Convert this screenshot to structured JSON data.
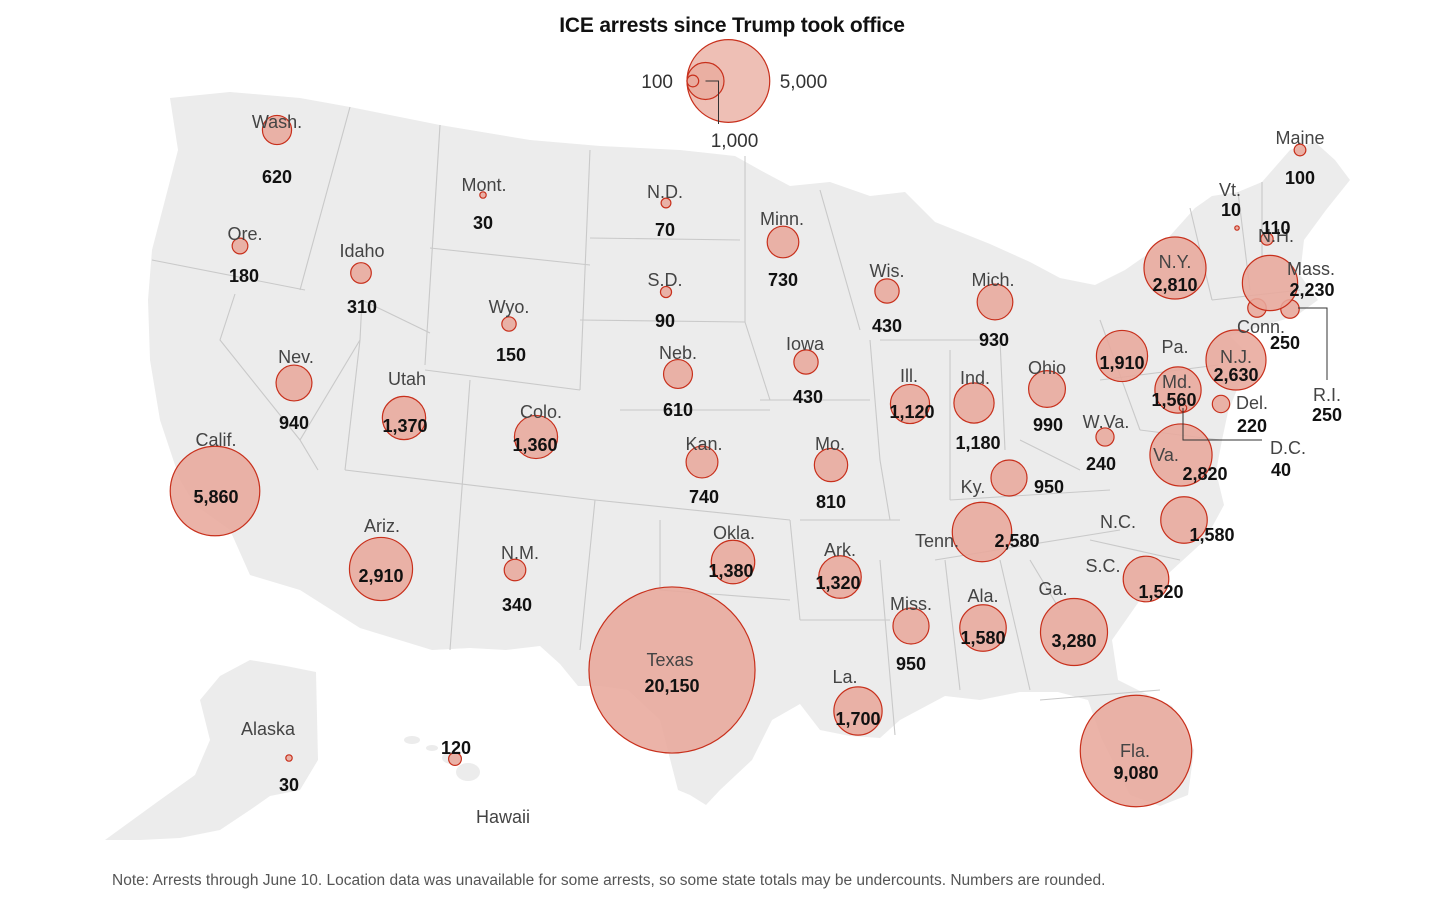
{
  "title": "ICE arrests since Trump took office",
  "note": "Note: Arrests through June 10. Location data was unavailable for some arrests, so some state totals may be undercounts. Numbers are rounded.",
  "colors": {
    "land": "#ececec",
    "border": "#c9c9c9",
    "bubble_fill": "#e8a99c",
    "bubble_stroke": "#c8301c",
    "text": "#111111",
    "label": "#444444"
  },
  "legend": {
    "values": [
      100,
      1000,
      5000
    ],
    "labels": [
      "100",
      "1,000",
      "5,000"
    ]
  },
  "states": [
    {
      "name": "Wash.",
      "value": 620,
      "display": "620"
    },
    {
      "name": "Ore.",
      "value": 180,
      "display": "180"
    },
    {
      "name": "Calif.",
      "value": 5860,
      "display": "5,860"
    },
    {
      "name": "Nev.",
      "value": 940,
      "display": "940"
    },
    {
      "name": "Idaho",
      "value": 310,
      "display": "310"
    },
    {
      "name": "Mont.",
      "value": 30,
      "display": "30"
    },
    {
      "name": "Wyo.",
      "value": 150,
      "display": "150"
    },
    {
      "name": "Utah",
      "value": 1370,
      "display": "1,370"
    },
    {
      "name": "Colo.",
      "value": 1360,
      "display": "1,360"
    },
    {
      "name": "Ariz.",
      "value": 2910,
      "display": "2,910"
    },
    {
      "name": "N.M.",
      "value": 340,
      "display": "340"
    },
    {
      "name": "N.D.",
      "value": 70,
      "display": "70"
    },
    {
      "name": "S.D.",
      "value": 90,
      "display": "90"
    },
    {
      "name": "Neb.",
      "value": 610,
      "display": "610"
    },
    {
      "name": "Kan.",
      "value": 740,
      "display": "740"
    },
    {
      "name": "Okla.",
      "value": 1380,
      "display": "1,380"
    },
    {
      "name": "Texas",
      "value": 20150,
      "display": "20,150"
    },
    {
      "name": "Minn.",
      "value": 730,
      "display": "730"
    },
    {
      "name": "Iowa",
      "value": 430,
      "display": "430"
    },
    {
      "name": "Mo.",
      "value": 810,
      "display": "810"
    },
    {
      "name": "Ark.",
      "value": 1320,
      "display": "1,320"
    },
    {
      "name": "La.",
      "value": 1700,
      "display": "1,700"
    },
    {
      "name": "Wis.",
      "value": 430,
      "display": "430"
    },
    {
      "name": "Ill.",
      "value": 1120,
      "display": "1,120"
    },
    {
      "name": "Mich.",
      "value": 930,
      "display": "930"
    },
    {
      "name": "Ind.",
      "value": 1180,
      "display": "1,180"
    },
    {
      "name": "Ohio",
      "value": 990,
      "display": "990"
    },
    {
      "name": "Ky.",
      "value": 950,
      "display": "950"
    },
    {
      "name": "Tenn.",
      "value": 2580,
      "display": "2,580"
    },
    {
      "name": "Miss.",
      "value": 950,
      "display": "950"
    },
    {
      "name": "Ala.",
      "value": 1580,
      "display": "1,580"
    },
    {
      "name": "Ga.",
      "value": 3280,
      "display": "3,280"
    },
    {
      "name": "Fla.",
      "value": 9080,
      "display": "9,080"
    },
    {
      "name": "S.C.",
      "value": 1520,
      "display": "1,520"
    },
    {
      "name": "N.C.",
      "value": 1580,
      "display": "1,580"
    },
    {
      "name": "Va.",
      "value": 2820,
      "display": "2,820"
    },
    {
      "name": "W.Va.",
      "value": 240,
      "display": "240"
    },
    {
      "name": "Md.",
      "value": 1560,
      "display": "1,560"
    },
    {
      "name": "D.C.",
      "value": 40,
      "display": "40"
    },
    {
      "name": "Del.",
      "value": 220,
      "display": "220"
    },
    {
      "name": "Pa.",
      "value": 1910,
      "display": "1,910"
    },
    {
      "name": "N.J.",
      "value": 2630,
      "display": "2,630"
    },
    {
      "name": "N.Y.",
      "value": 2810,
      "display": "2,810"
    },
    {
      "name": "Conn.",
      "value": 250,
      "display": "250"
    },
    {
      "name": "R.I.",
      "value": 250,
      "display": "250"
    },
    {
      "name": "Mass.",
      "value": 2230,
      "display": "2,230"
    },
    {
      "name": "Vt.",
      "value": 10,
      "display": "10"
    },
    {
      "name": "N.H.",
      "value": 110,
      "display": "110"
    },
    {
      "name": "Maine",
      "value": 100,
      "display": "100"
    },
    {
      "name": "Alaska",
      "value": 30,
      "display": "30"
    },
    {
      "name": "Hawaii",
      "value": 120,
      "display": "120"
    }
  ]
}
